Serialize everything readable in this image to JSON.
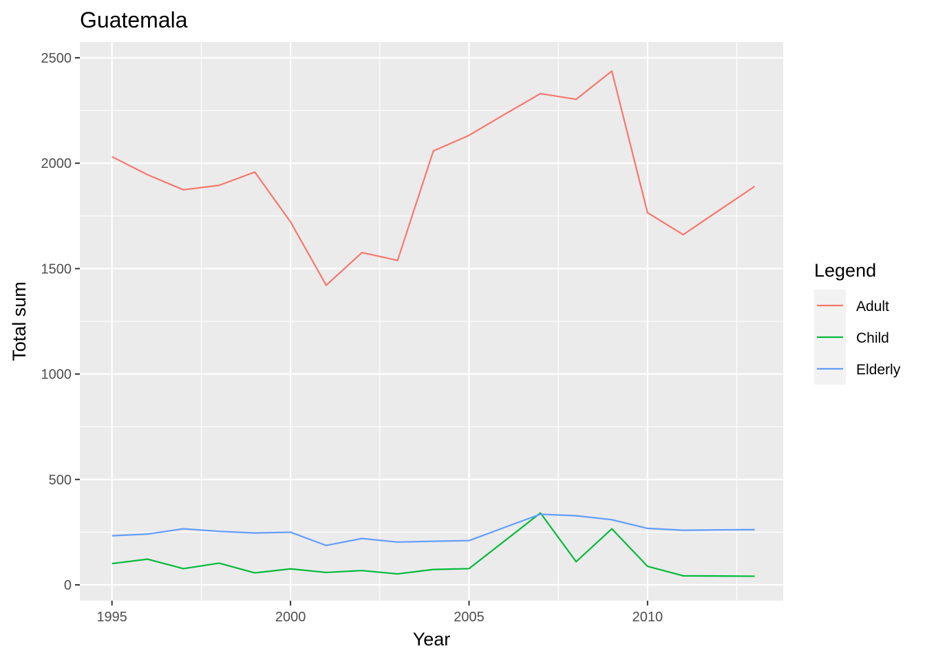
{
  "chart_data": {
    "type": "line",
    "title": "Guatemala",
    "xlabel": "Year",
    "ylabel": "Total sum",
    "xlim": [
      1994.1,
      2013.8
    ],
    "ylim": [
      -75,
      2575
    ],
    "x_ticks": [
      1995,
      2000,
      2005,
      2010
    ],
    "x_tick_labels": [
      "1995",
      "2000",
      "2005",
      "2010"
    ],
    "y_ticks": [
      0,
      500,
      1000,
      1500,
      2000,
      2500
    ],
    "y_tick_labels": [
      "0",
      "500",
      "1000",
      "1500",
      "2000",
      "2500"
    ],
    "grid": true,
    "legend": {
      "title": "Legend",
      "position": "right"
    },
    "x": [
      1995,
      1996,
      1997,
      1998,
      1999,
      2000,
      2001,
      2002,
      2003,
      2004,
      2005,
      2006,
      2007,
      2008,
      2009,
      2010,
      2011,
      2012,
      2013
    ],
    "series": [
      {
        "name": "Adult",
        "color": "#F8766D",
        "values": [
          2031,
          1945,
          1874,
          1895,
          1958,
          1722,
          1421,
          1576,
          1539,
          2058,
          2132,
          2232,
          2330,
          2303,
          2437,
          1765,
          1661,
          1776,
          1890
        ]
      },
      {
        "name": "Child",
        "color": "#00BA38",
        "values": [
          101,
          122,
          77,
          103,
          57,
          76,
          59,
          68,
          52,
          73,
          77,
          209,
          341,
          110,
          266,
          88,
          43,
          42,
          41
        ]
      },
      {
        "name": "Elderly",
        "color": "#619CFF",
        "values": [
          233,
          241,
          266,
          254,
          246,
          250,
          187,
          220,
          203,
          207,
          210,
          273,
          335,
          328,
          309,
          268,
          259,
          261,
          262
        ]
      }
    ]
  }
}
